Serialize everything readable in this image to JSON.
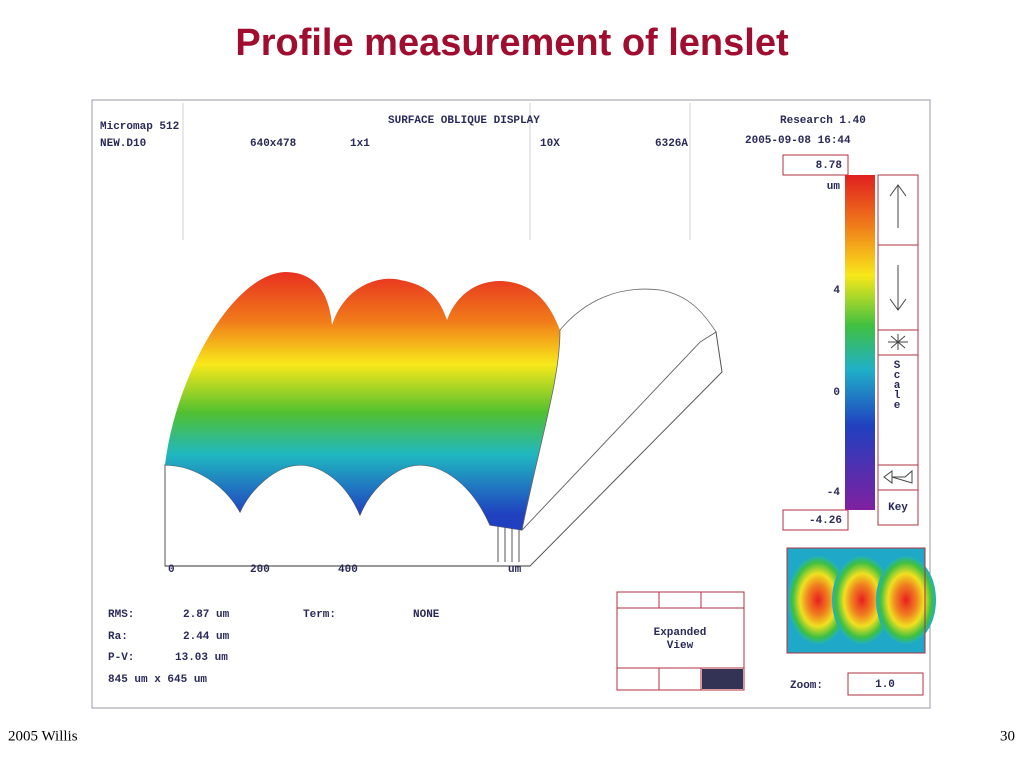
{
  "header": {
    "title": "Profile measurement of lenslet"
  },
  "screen": {
    "app": "Micromap 512",
    "file": "NEW.D10",
    "resolution": "640x478",
    "binning": "1x1",
    "objective": "10X",
    "wavelength": "6326A",
    "display": "SURFACE OBLIQUE DISPLAY",
    "version": "Research 1.40",
    "timestamp": "2005-09-08 16:44",
    "colorbar": {
      "max": "8.78",
      "unit": "um",
      "ticks": [
        "4",
        "0",
        "-4"
      ],
      "min": "-4.26"
    },
    "buttons": {
      "scale": "Scale",
      "key": "Key",
      "expanded_view": [
        "Expanded",
        "View"
      ]
    },
    "x_axis": {
      "ticks": [
        "0",
        "200",
        "400"
      ],
      "unit": "um"
    },
    "stats": [
      {
        "label": "RMS:",
        "value": "2.87 um"
      },
      {
        "label": "Ra:",
        "value": "2.44 um"
      },
      {
        "label": "P-V:",
        "value": "13.03 um"
      }
    ],
    "size": "845 um x 645 um",
    "term": {
      "label": "Term:",
      "value": "NONE"
    },
    "zoom": {
      "label": "Zoom:",
      "value": "1.0"
    }
  },
  "footer": {
    "left": "2005 Willis",
    "page": "30"
  }
}
